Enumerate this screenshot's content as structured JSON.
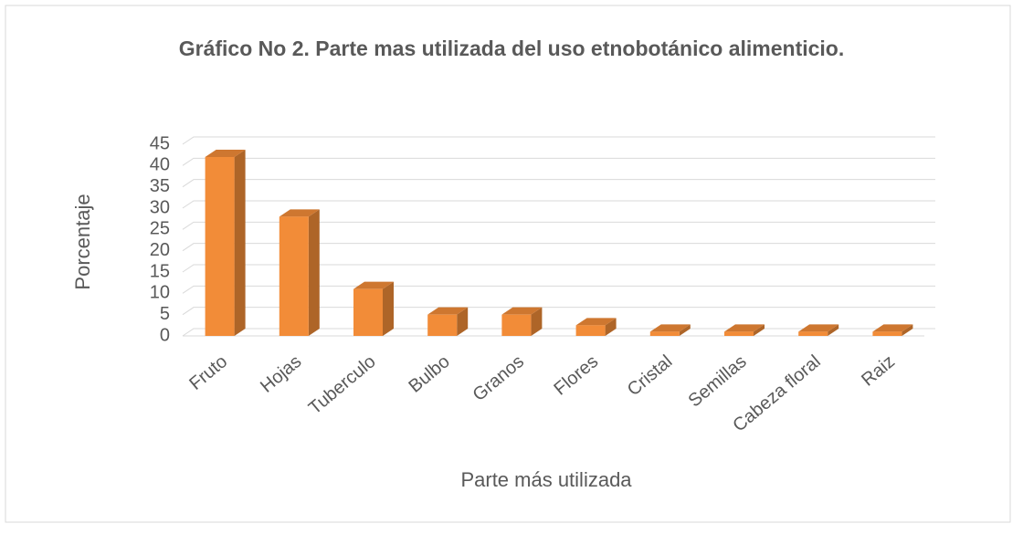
{
  "chart_data": {
    "type": "bar3d",
    "title": "Gráfico No 2. Parte mas utilizada del uso etnobotánico alimenticio.",
    "x_label": "Parte más utilizada",
    "y_label": "Porcentaje",
    "categories": [
      "Fruto",
      "Hojas",
      "Tuberculo",
      "Bulbo",
      "Granos",
      "Flores",
      "Cristal",
      "Semillas",
      "Cabeza floral",
      "Raiz"
    ],
    "values": [
      42,
      28,
      11,
      5,
      5,
      2.5,
      1,
      1,
      1,
      1
    ],
    "color": "#f28c38",
    "ylim": [
      0,
      45
    ],
    "yticks": [
      0,
      5,
      10,
      15,
      20,
      25,
      30,
      35,
      40,
      45
    ],
    "grid": true
  }
}
